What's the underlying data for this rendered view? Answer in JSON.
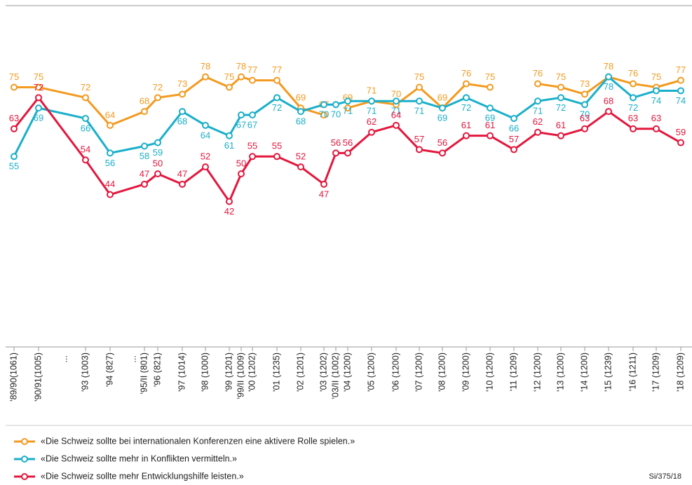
{
  "chart_data": {
    "type": "line",
    "categories": [
      "'89/90(1061)",
      "'90/91(1005)",
      "'93 (1003)",
      "'94 (827)",
      "'95/II (801)",
      "'96 (821)",
      "'97 (1014)",
      "'98 (1000)",
      "'99 (1201)",
      "'99/II (1009)",
      "'00 (1202)",
      "'01 (1235)",
      "'02 (1201)",
      "'03 (1202)",
      "'03/II (1002)",
      "'04 (1200)",
      "'05 (1200)",
      "'06 (1200)",
      "'07 (1200)",
      "'08 (1200)",
      "'09 (1200)",
      "'10 (1200)",
      "'11 (1209)",
      "'12 (1200)",
      "'13 (1200)",
      "'14 (1200)",
      "'15 (1239)",
      "'16 (1211)",
      "'17 (1209)",
      "'18 (1209)"
    ],
    "gap_labels": [
      "...",
      "..."
    ],
    "series": [
      {
        "name": "«Die Schweiz sollte bei internationalen Konferenzen eine aktivere Rolle spielen.»",
        "color": "#f39a1f",
        "values": [
          75,
          75,
          72,
          64,
          68,
          72,
          73,
          78,
          75,
          78,
          77,
          77,
          69,
          67,
          null,
          69,
          71,
          70,
          75,
          69,
          76,
          75,
          null,
          76,
          75,
          73,
          78,
          76,
          75,
          77
        ]
      },
      {
        "name": "«Die Schweiz sollte mehr in Konflikten vermitteln.»",
        "color": "#1aafca",
        "values": [
          55,
          69,
          66,
          56,
          58,
          59,
          68,
          64,
          61,
          67,
          67,
          72,
          68,
          70,
          70,
          71,
          71,
          71,
          71,
          69,
          72,
          69,
          66,
          71,
          72,
          70,
          78,
          72,
          74,
          74
        ]
      },
      {
        "name": "«Die Schweiz sollte mehr Entwicklungshilfe leisten.»",
        "color": "#e3173d",
        "values": [
          63,
          72,
          54,
          44,
          47,
          50,
          47,
          52,
          42,
          50,
          55,
          55,
          52,
          47,
          56,
          56,
          62,
          64,
          57,
          56,
          61,
          61,
          57,
          62,
          61,
          63,
          68,
          63,
          63,
          59
        ]
      }
    ],
    "ylim": [
      0,
      100
    ],
    "source": "Si/375/18"
  }
}
